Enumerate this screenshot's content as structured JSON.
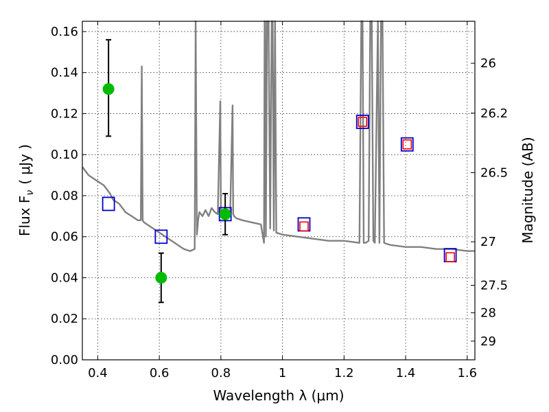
{
  "chart_data": {
    "type": "scatter",
    "xlabel": "Wavelength  λ (μm)",
    "ylabel": "Flux  F",
    "ylabel_subscript": "ν",
    "ylabel_unit": "( μJy )",
    "y2label": "Magnitude (AB)",
    "xlim": [
      0.35,
      1.625
    ],
    "ylim": [
      0.0,
      0.165
    ],
    "grid": true,
    "x_ticks": [
      {
        "value": 0.4,
        "label": "0.4"
      },
      {
        "value": 0.6,
        "label": "0.6"
      },
      {
        "value": 0.8,
        "label": "0.8"
      },
      {
        "value": 1.0,
        "label": "1"
      },
      {
        "value": 1.2,
        "label": "1.2"
      },
      {
        "value": 1.4,
        "label": "1.4"
      },
      {
        "value": 1.6,
        "label": "1.6"
      }
    ],
    "y_ticks": [
      {
        "value": 0.0,
        "label": "0.00"
      },
      {
        "value": 0.02,
        "label": "0.02"
      },
      {
        "value": 0.04,
        "label": "0.04"
      },
      {
        "value": 0.06,
        "label": "0.06"
      },
      {
        "value": 0.08,
        "label": "0.08"
      },
      {
        "value": 0.1,
        "label": "0.10"
      },
      {
        "value": 0.12,
        "label": "0.12"
      },
      {
        "value": 0.14,
        "label": "0.14"
      },
      {
        "value": 0.16,
        "label": "0.16"
      }
    ],
    "y2_ticks": [
      {
        "magnitude": 26,
        "label": "26"
      },
      {
        "magnitude": 26.2,
        "label": "26.2"
      },
      {
        "magnitude": 26.5,
        "label": "26.5"
      },
      {
        "magnitude": 27,
        "label": "27"
      },
      {
        "magnitude": 27.5,
        "label": "27.5"
      },
      {
        "magnitude": 28,
        "label": "28"
      },
      {
        "magnitude": 29,
        "label": "29"
      }
    ],
    "series": [
      {
        "kind": "model_spectrum",
        "color": "#808080",
        "x": [
          0.35,
          0.36,
          0.37,
          0.38,
          0.39,
          0.4,
          0.41,
          0.42,
          0.43,
          0.44,
          0.45,
          0.46,
          0.47,
          0.48,
          0.49,
          0.5,
          0.51,
          0.52,
          0.53,
          0.54,
          0.543,
          0.546,
          0.55,
          0.56,
          0.58,
          0.6,
          0.62,
          0.64,
          0.66,
          0.68,
          0.7,
          0.715,
          0.718,
          0.722,
          0.726,
          0.73,
          0.74,
          0.75,
          0.76,
          0.77,
          0.78,
          0.79,
          0.798,
          0.8,
          0.803,
          0.81,
          0.82,
          0.83,
          0.838,
          0.84,
          0.843,
          0.85,
          0.87,
          0.9,
          0.93,
          0.94,
          0.942,
          0.944,
          0.946,
          0.95,
          0.955,
          0.96,
          0.965,
          0.968,
          0.972,
          0.976,
          0.98,
          1.0,
          1.05,
          1.1,
          1.15,
          1.2,
          1.25,
          1.256,
          1.26,
          1.264,
          1.27,
          1.28,
          1.285,
          1.29,
          1.295,
          1.3,
          1.31,
          1.315,
          1.32,
          1.325,
          1.33,
          1.35,
          1.4,
          1.45,
          1.5,
          1.55,
          1.6,
          1.625
        ],
        "y": [
          0.094,
          0.092,
          0.09,
          0.089,
          0.088,
          0.087,
          0.086,
          0.085,
          0.083,
          0.081,
          0.078,
          0.077,
          0.076,
          0.074,
          0.072,
          0.071,
          0.07,
          0.069,
          0.068,
          0.068,
          0.143,
          0.068,
          0.067,
          0.066,
          0.064,
          0.062,
          0.06,
          0.058,
          0.056,
          0.054,
          0.053,
          0.054,
          0.165,
          0.061,
          0.068,
          0.072,
          0.07,
          0.073,
          0.07,
          0.074,
          0.072,
          0.071,
          0.126,
          0.072,
          0.073,
          0.071,
          0.072,
          0.07,
          0.124,
          0.071,
          0.07,
          0.069,
          0.068,
          0.067,
          0.066,
          0.057,
          0.165,
          0.165,
          0.06,
          0.165,
          0.165,
          0.064,
          0.165,
          0.165,
          0.063,
          0.165,
          0.062,
          0.061,
          0.06,
          0.059,
          0.058,
          0.058,
          0.057,
          0.165,
          0.165,
          0.057,
          0.057,
          0.058,
          0.165,
          0.165,
          0.058,
          0.057,
          0.165,
          0.057,
          0.165,
          0.165,
          0.057,
          0.056,
          0.055,
          0.055,
          0.054,
          0.054,
          0.053,
          0.053
        ]
      },
      {
        "kind": "observed_points_with_errors",
        "color": "#00bb00",
        "points": [
          {
            "x": 0.435,
            "y": 0.132,
            "yerr_low": 0.109,
            "yerr_high": 0.156
          },
          {
            "x": 0.606,
            "y": 0.04,
            "yerr_low": 0.028,
            "yerr_high": 0.052
          },
          {
            "x": 0.814,
            "y": 0.071,
            "yerr_low": 0.061,
            "yerr_high": 0.081
          }
        ]
      },
      {
        "kind": "model_photometry",
        "color": "#0000cc",
        "marker": "open-square",
        "points": [
          {
            "x": 0.435,
            "y": 0.076
          },
          {
            "x": 0.606,
            "y": 0.06
          },
          {
            "x": 0.814,
            "y": 0.071
          },
          {
            "x": 1.07,
            "y": 0.066
          },
          {
            "x": 1.26,
            "y": 0.116
          },
          {
            "x": 1.405,
            "y": 0.105
          },
          {
            "x": 1.545,
            "y": 0.051
          }
        ]
      },
      {
        "kind": "model_photometry_alt",
        "color": "#ff0000",
        "marker": "open-square-small",
        "points": [
          {
            "x": 1.07,
            "y": 0.065
          },
          {
            "x": 1.26,
            "y": 0.116
          },
          {
            "x": 1.405,
            "y": 0.105
          },
          {
            "x": 1.545,
            "y": 0.05
          }
        ]
      }
    ]
  }
}
